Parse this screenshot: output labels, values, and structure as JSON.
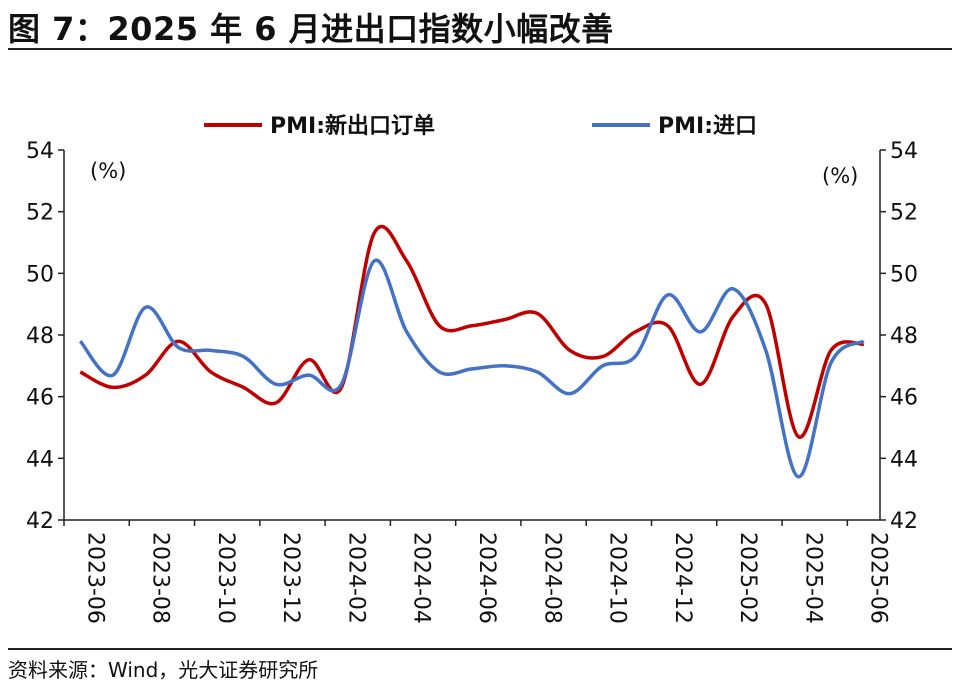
{
  "header": {
    "title": "图 7：2025 年 6 月进出口指数小幅改善"
  },
  "footer": {
    "source": "资料来源：Wind，光大证券研究所"
  },
  "chart_data": {
    "type": "line",
    "left_unit": "(%)",
    "right_unit": "(%)",
    "ylim": [
      42,
      54
    ],
    "yticks": [
      42,
      44,
      46,
      48,
      50,
      52,
      54
    ],
    "legend_position": "top",
    "x": [
      "2023-06",
      "2023-07",
      "2023-08",
      "2023-09",
      "2023-10",
      "2023-11",
      "2023-12",
      "2024-01",
      "2024-02",
      "2024-03",
      "2024-04",
      "2024-05",
      "2024-06",
      "2024-07",
      "2024-08",
      "2024-09",
      "2024-10",
      "2024-11",
      "2024-12",
      "2025-01",
      "2025-02",
      "2025-03",
      "2025-04",
      "2025-05",
      "2025-06"
    ],
    "xtick_labels": [
      "2023-06",
      "2023-08",
      "2023-10",
      "2023-12",
      "2024-02",
      "2024-04",
      "2024-06",
      "2024-08",
      "2024-10",
      "2024-12",
      "2025-02",
      "2025-04",
      "2025-06"
    ],
    "series": [
      {
        "name": "PMI:新出口订单",
        "color": "#c00000",
        "values": [
          46.8,
          46.3,
          46.7,
          47.8,
          46.8,
          46.3,
          45.8,
          47.2,
          46.3,
          51.3,
          50.4,
          48.3,
          48.3,
          48.5,
          48.7,
          47.5,
          47.3,
          48.1,
          48.3,
          46.4,
          48.6,
          49.0,
          44.7,
          47.5,
          47.7
        ]
      },
      {
        "name": "PMI:进口",
        "color": "#4472c4",
        "values": [
          47.8,
          46.7,
          48.9,
          47.6,
          47.5,
          47.3,
          46.4,
          46.7,
          46.4,
          50.4,
          48.1,
          46.8,
          46.9,
          47.0,
          46.8,
          46.1,
          47.0,
          47.3,
          49.3,
          48.1,
          49.5,
          47.5,
          43.4,
          47.1,
          47.8
        ]
      }
    ]
  }
}
